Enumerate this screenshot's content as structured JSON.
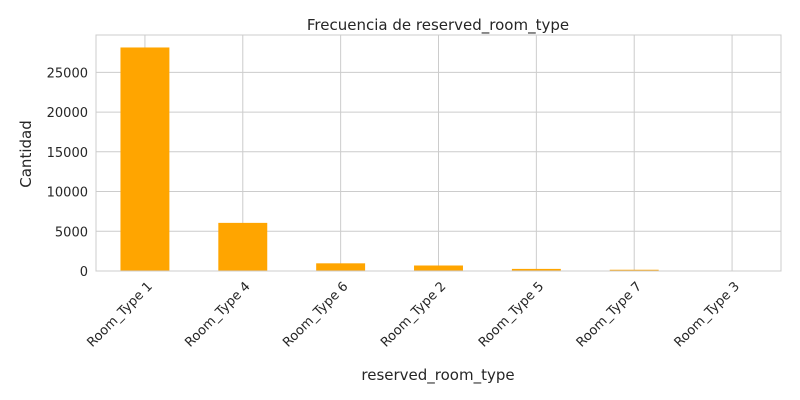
{
  "chart_data": {
    "type": "bar",
    "title": "Frecuencia de reserved_room_type",
    "xlabel": "reserved_room_type",
    "ylabel": "Cantidad",
    "categories": [
      "Room_Type 1",
      "Room_Type 4",
      "Room_Type 6",
      "Room_Type 2",
      "Room_Type 5",
      "Room_Type 7",
      "Room_Type 3"
    ],
    "values": [
      28130,
      6057,
      966,
      692,
      265,
      158,
      7
    ],
    "ylim": [
      0,
      29700
    ],
    "yticks": [
      0,
      5000,
      10000,
      15000,
      20000,
      25000
    ],
    "bar_color": "#ffa500",
    "grid": true,
    "legend": "none"
  }
}
